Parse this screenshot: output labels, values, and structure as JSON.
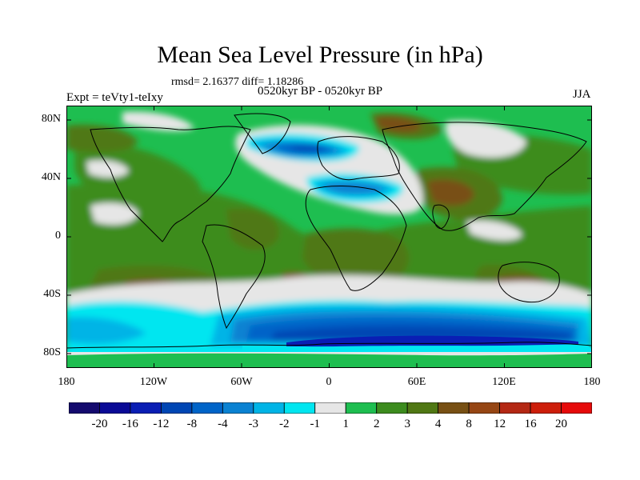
{
  "title": "Mean Sea Level Pressure (in hPa)",
  "stats": "rmsd= 2.16377 diff= 1.18286",
  "period": "0520kyr BP - 0520kyr BP",
  "experiment": "Expt = teVty1-teIxy",
  "season": "JJA",
  "map": {
    "variable": "mean sea level pressure difference",
    "units": "hPa",
    "lat_ticks": [
      "80N",
      "40N",
      "0",
      "40S",
      "80S"
    ],
    "lon_ticks": [
      "180",
      "120W",
      "60W",
      "0",
      "60E",
      "120E",
      "180"
    ]
  },
  "colorbar": {
    "labels": [
      "-20",
      "-16",
      "-12",
      "-8",
      "-4",
      "-3",
      "-2",
      "-1",
      "1",
      "2",
      "3",
      "4",
      "8",
      "12",
      "16",
      "20"
    ],
    "colors": [
      "#140a6e",
      "#0a0a96",
      "#0a1eb4",
      "#0046b4",
      "#0064c8",
      "#0a82d2",
      "#00b4e6",
      "#00e6f0",
      "#e6e6e6",
      "#1ebe50",
      "#3c8c1e",
      "#507814",
      "#785014",
      "#964614",
      "#b42814",
      "#cd1e0a",
      "#e60a0a"
    ]
  }
}
